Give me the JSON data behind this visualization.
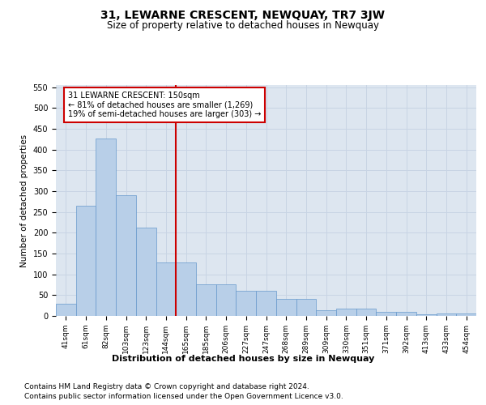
{
  "title": "31, LEWARNE CRESCENT, NEWQUAY, TR7 3JW",
  "subtitle": "Size of property relative to detached houses in Newquay",
  "xlabel": "Distribution of detached houses by size in Newquay",
  "ylabel": "Number of detached properties",
  "bar_labels": [
    "41sqm",
    "61sqm",
    "82sqm",
    "103sqm",
    "123sqm",
    "144sqm",
    "165sqm",
    "185sqm",
    "206sqm",
    "227sqm",
    "247sqm",
    "268sqm",
    "289sqm",
    "309sqm",
    "330sqm",
    "351sqm",
    "371sqm",
    "392sqm",
    "413sqm",
    "433sqm",
    "454sqm"
  ],
  "bar_values": [
    30,
    265,
    427,
    290,
    213,
    128,
    128,
    76,
    76,
    60,
    60,
    40,
    40,
    14,
    17,
    17,
    9,
    9,
    3,
    5,
    5
  ],
  "bar_color": "#b8cfe8",
  "bar_edge_color": "#6699cc",
  "grid_color": "#c8d4e4",
  "background_color": "#dde6f0",
  "vline_x": 5.5,
  "vline_color": "#cc0000",
  "annotation_text": "31 LEWARNE CRESCENT: 150sqm\n← 81% of detached houses are smaller (1,269)\n19% of semi-detached houses are larger (303) →",
  "annotation_box_color": "#cc0000",
  "ylim": [
    0,
    555
  ],
  "yticks": [
    0,
    50,
    100,
    150,
    200,
    250,
    300,
    350,
    400,
    450,
    500,
    550
  ],
  "footer_line1": "Contains HM Land Registry data © Crown copyright and database right 2024.",
  "footer_line2": "Contains public sector information licensed under the Open Government Licence v3.0.",
  "title_fontsize": 10,
  "subtitle_fontsize": 8.5,
  "label_fontsize": 7.5,
  "tick_fontsize": 6.5,
  "footer_fontsize": 6.5,
  "ann_fontsize": 7.0
}
